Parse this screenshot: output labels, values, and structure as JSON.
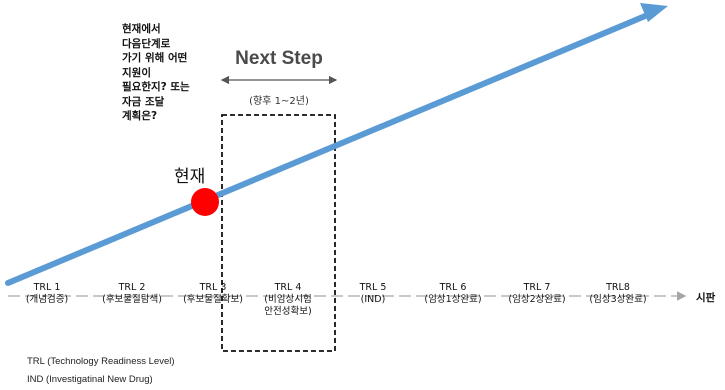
{
  "question_lines": [
    "현재에서",
    "다음단계로",
    "가기 위해 어떤",
    "지원이",
    "필요한지? 또는",
    "자금 조달",
    "계획은?"
  ],
  "next_step": {
    "title": "Next Step",
    "period": "(향후 1~2년)"
  },
  "current_label": "현재",
  "stages": [
    {
      "name": "TRL 1",
      "desc": "(개념검증)"
    },
    {
      "name": "TRL 2",
      "desc": "(후보물질탐색)"
    },
    {
      "name": "TRL 3",
      "desc": "(후보물질확보)"
    },
    {
      "name": "TRL 4",
      "desc": "(비임상시험",
      "desc2": "안전성확보)"
    },
    {
      "name": "TRL 5",
      "desc": "(IND)"
    },
    {
      "name": "TRL 6",
      "desc": "(임상1상완료)"
    },
    {
      "name": "TRL 7",
      "desc": "(임상2상완료)"
    },
    {
      "name": "TRL8",
      "desc": "(임상3상완료)"
    }
  ],
  "release_label": "시판",
  "notes": [
    "TRL (Technology Readiness Level)",
    "IND (Investigatinal New Drug)"
  ],
  "colors": {
    "arrow": "#5b9bd5",
    "current_marker": "#ff0000",
    "timeline": "#a6a6a6",
    "dashed_box": "#111111"
  }
}
